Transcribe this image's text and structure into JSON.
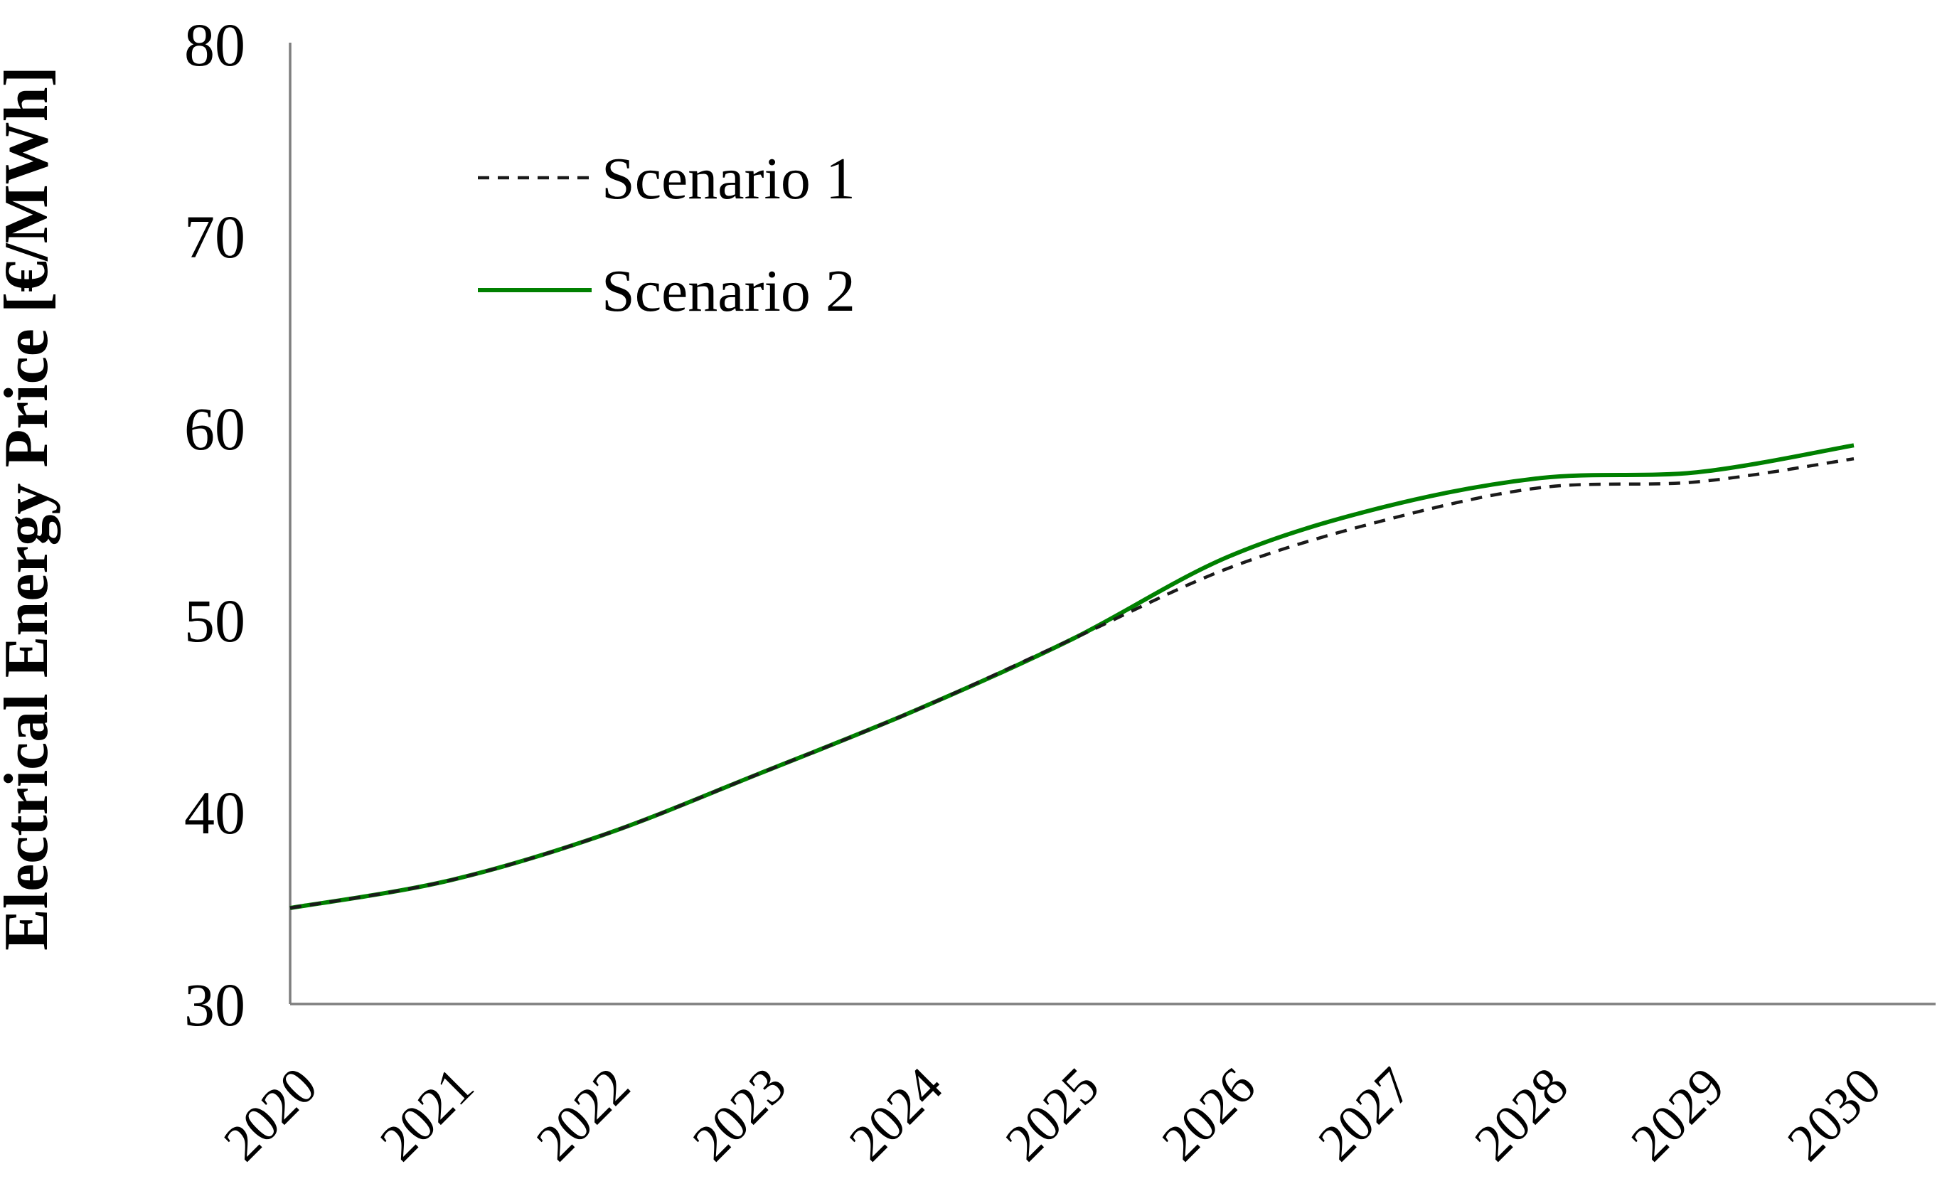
{
  "chart_data": {
    "type": "line",
    "title": "",
    "xlabel": "",
    "ylabel": "Electrical Energy Price [€/MWh]",
    "ylim": [
      30,
      80
    ],
    "yticks": [
      80,
      70,
      60,
      50,
      40,
      30
    ],
    "grid": false,
    "legend_position": "top-left-inside",
    "categories": [
      "2020",
      "2021",
      "2022",
      "2023",
      "2024",
      "2025",
      "2026",
      "2027",
      "2028",
      "2029",
      "2030"
    ],
    "series": [
      {
        "name": "Scenario 1",
        "style": "dashed",
        "color": "#1a1a1a",
        "values": [
          35.0,
          36.4,
          38.8,
          42.0,
          45.3,
          49.0,
          52.7,
          55.2,
          56.9,
          57.2,
          58.4
        ]
      },
      {
        "name": "Scenario 2",
        "style": "solid",
        "color": "#008000",
        "values": [
          35.0,
          36.4,
          38.8,
          42.0,
          45.3,
          49.0,
          53.3,
          55.9,
          57.4,
          57.7,
          59.1
        ]
      }
    ],
    "axis_color": "#7f7f7f",
    "units": "€/MWh"
  }
}
